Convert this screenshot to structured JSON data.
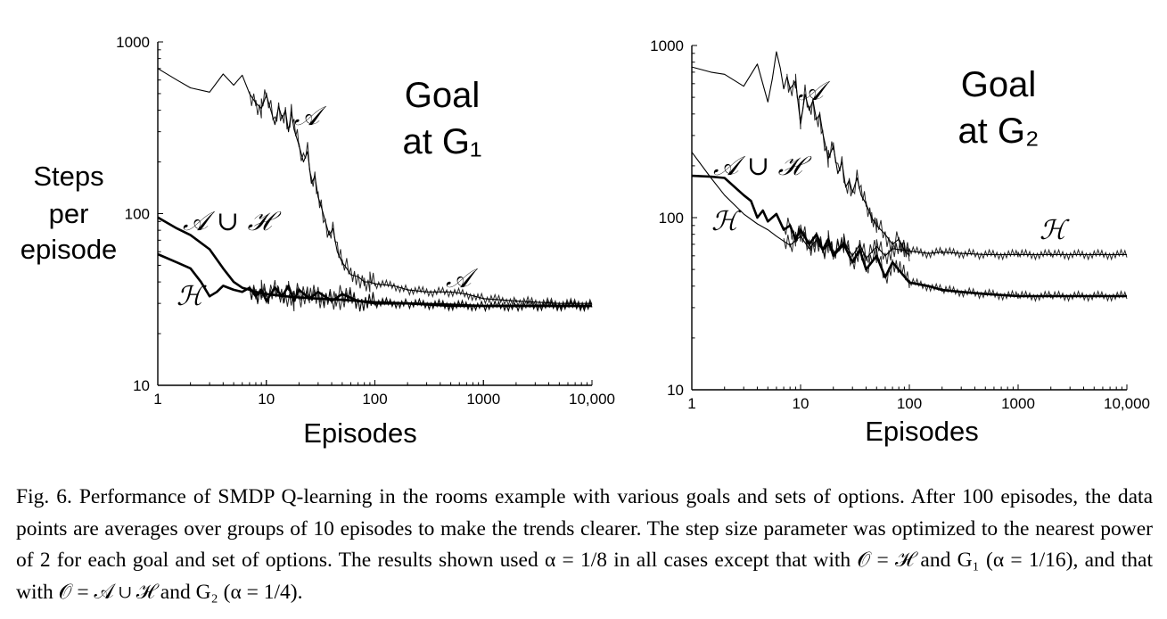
{
  "figure": {
    "ylabel_lines": [
      "Steps",
      "per",
      "episode"
    ],
    "caption": "Fig. 6. Performance of SMDP Q-learning in the rooms example with various goals and sets of options. After 100 episodes, the data points are averages over groups of 10 episodes to make the trends clearer. The step size parameter was optimized to the nearest power of 2 for each goal and set of options. The results shown used α = 1/8 in all cases except that with 𝒪 = ℋ and G₁ (α = 1/16), and that with 𝒪 = 𝒜 ∪ ℋ and G₂ (α = 1/4)."
  },
  "chart_data": [
    {
      "type": "line",
      "title_lines": [
        "Goal",
        "at G₁"
      ],
      "xlabel": "Episodes",
      "ylabel": "Steps per episode",
      "xscale": "log",
      "yscale": "log",
      "xlim": [
        1,
        10000
      ],
      "ylim": [
        10,
        1000
      ],
      "xticks": [
        "1",
        "10",
        "100",
        "1000",
        "10,000"
      ],
      "yticks": [
        "10",
        "100",
        "1000"
      ],
      "grid": false,
      "series": [
        {
          "name": "𝒜",
          "stroke": "thin",
          "x": [
            1,
            1.5,
            2,
            3,
            4,
            5,
            6,
            7,
            8,
            9,
            10,
            11,
            12,
            13,
            14,
            15,
            16,
            17,
            18,
            20,
            22,
            24,
            26,
            28,
            30,
            32,
            35,
            38,
            41,
            45,
            50,
            55,
            60,
            70,
            80,
            90,
            100,
            150,
            200,
            300,
            500,
            700,
            1000,
            2000,
            5000,
            10000
          ],
          "y": [
            700,
            600,
            540,
            510,
            650,
            560,
            640,
            500,
            440,
            410,
            490,
            400,
            330,
            420,
            360,
            400,
            300,
            390,
            310,
            250,
            200,
            230,
            150,
            165,
            125,
            110,
            90,
            75,
            82,
            60,
            52,
            48,
            44,
            43,
            40,
            40,
            39,
            38,
            36,
            35,
            35,
            34,
            32,
            31,
            30,
            30
          ]
        },
        {
          "name": "𝒜 ∪ ℋ",
          "stroke": "thick",
          "x": [
            1,
            1.5,
            2,
            3,
            4,
            5,
            6,
            7,
            8,
            10,
            15,
            20,
            30,
            50,
            70,
            100,
            200,
            500,
            1000,
            2000,
            5000,
            10000
          ],
          "y": [
            95,
            82,
            75,
            62,
            48,
            40,
            37,
            36,
            35,
            34,
            33,
            32.5,
            32,
            31.5,
            31,
            30.5,
            30,
            29.5,
            29,
            29,
            29,
            29
          ]
        },
        {
          "name": "ℋ",
          "stroke": "thick",
          "x": [
            1,
            1.5,
            2,
            2.5,
            3,
            3.5,
            4,
            5,
            6,
            7,
            8,
            9,
            10,
            12,
            14,
            16,
            18,
            20,
            25,
            30,
            40,
            50,
            70,
            100,
            200,
            500,
            1000,
            2000,
            5000,
            10000
          ],
          "y": [
            58,
            52,
            48,
            40,
            33,
            35,
            38,
            36,
            35,
            37,
            33,
            36,
            31,
            37,
            33,
            38,
            31,
            36,
            32,
            35,
            31,
            34,
            31,
            30,
            30,
            29,
            29,
            29,
            29,
            29
          ]
        }
      ]
    },
    {
      "type": "line",
      "title_lines": [
        "Goal",
        "at G₂"
      ],
      "xlabel": "Episodes",
      "ylabel": "",
      "xscale": "log",
      "yscale": "log",
      "xlim": [
        1,
        10000
      ],
      "ylim": [
        10,
        1000
      ],
      "xticks": [
        "1",
        "10",
        "100",
        "1000",
        "10,000"
      ],
      "yticks": [
        "10",
        "100",
        "1000"
      ],
      "grid": false,
      "series": [
        {
          "name": "𝒜",
          "stroke": "thin",
          "x": [
            1,
            1.5,
            2,
            3,
            4,
            5,
            5.5,
            6,
            6.5,
            7,
            7.5,
            8,
            9,
            10,
            11,
            12,
            13,
            14,
            15,
            16,
            18,
            20,
            22,
            24,
            26,
            28,
            30,
            33,
            36,
            40,
            45,
            50,
            60,
            70,
            80,
            90,
            100
          ],
          "y": [
            750,
            700,
            680,
            580,
            780,
            470,
            640,
            920,
            740,
            560,
            660,
            560,
            620,
            350,
            520,
            420,
            480,
            370,
            400,
            310,
            220,
            260,
            180,
            210,
            150,
            165,
            140,
            170,
            135,
            120,
            100,
            90,
            80,
            70,
            75,
            65,
            60
          ]
        },
        {
          "name": "𝒜 ∪ ℋ",
          "stroke": "thick",
          "x": [
            1,
            1.5,
            2,
            3,
            3.5,
            4,
            4.5,
            5,
            6,
            7,
            8,
            9,
            10,
            12,
            14,
            16,
            18,
            20,
            25,
            30,
            35,
            40,
            50,
            60,
            70,
            100,
            150,
            200,
            300,
            500,
            1000,
            2000,
            5000,
            10000
          ],
          "y": [
            175,
            173,
            170,
            135,
            125,
            100,
            110,
            95,
            105,
            85,
            90,
            75,
            85,
            70,
            80,
            65,
            75,
            60,
            70,
            55,
            65,
            50,
            60,
            45,
            55,
            42,
            40,
            38,
            37,
            36,
            35,
            35,
            35,
            35
          ]
        },
        {
          "name": "ℋ",
          "stroke": "thin",
          "x": [
            1,
            1.5,
            2,
            3,
            4,
            5,
            6,
            7,
            8,
            10,
            12,
            14,
            16,
            18,
            20,
            25,
            30,
            35,
            40,
            50,
            60,
            70,
            100,
            150,
            200,
            300,
            500,
            1000,
            2000,
            5000,
            10000
          ],
          "y": [
            240,
            170,
            135,
            105,
            92,
            85,
            78,
            73,
            69,
            78,
            66,
            74,
            64,
            70,
            62,
            72,
            60,
            70,
            58,
            68,
            60,
            66,
            64,
            62,
            63,
            62,
            61,
            61,
            61,
            61,
            61
          ]
        }
      ]
    }
  ]
}
